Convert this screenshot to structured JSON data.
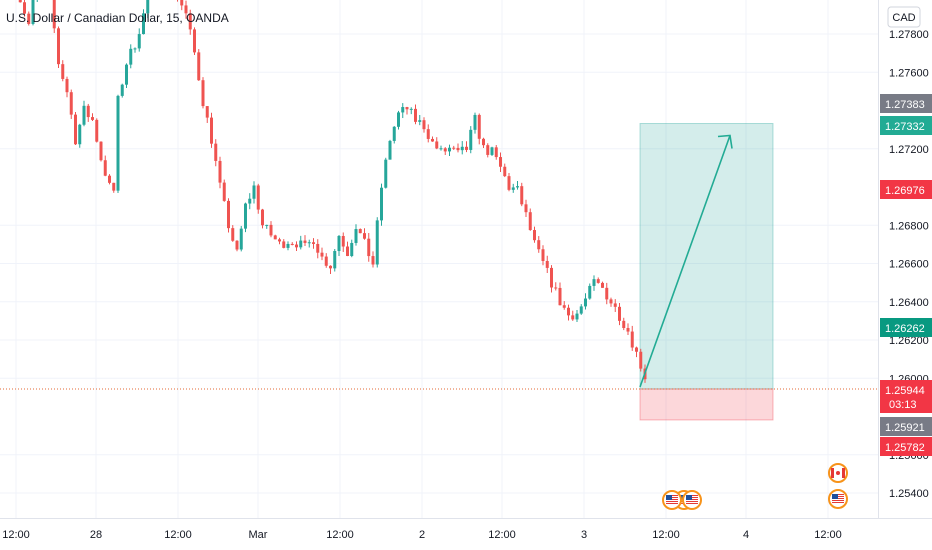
{
  "title": "U.S. Dollar / Canadian Dollar, 15, OANDA",
  "currency_label": "CAD",
  "colors": {
    "up": "#26a69a",
    "down": "#ef5350",
    "grid": "#f0f3fa",
    "axis_text": "#131722",
    "profit_zone": "rgba(38,166,154,0.2)",
    "loss_zone": "rgba(242,54,69,0.2)",
    "arrow": "#22ab94",
    "dotted_line": "#e36a35"
  },
  "chart_data": {
    "type": "candlestick",
    "instrument": "U.S. Dollar / Canadian Dollar",
    "interval": "15",
    "source": "OANDA",
    "ylim": [
      1.2533,
      1.2825
    ],
    "y_ticks": [
      "1.27800",
      "1.27600",
      "1.27200",
      "1.26800",
      "1.26600",
      "1.26400",
      "1.26200",
      "1.26000",
      "1.25600",
      "1.25400"
    ],
    "x_ticks": [
      "12:00",
      "28",
      "12:00",
      "Mar",
      "12:00",
      "2",
      "12:00",
      "3",
      "12:00",
      "4",
      "12:00"
    ],
    "price_path": [
      [
        0,
        1.2805
      ],
      [
        3,
        1.2785
      ],
      [
        5,
        1.281
      ],
      [
        8,
        1.28
      ],
      [
        10,
        1.2765
      ],
      [
        12,
        1.275
      ],
      [
        14,
        1.2725
      ],
      [
        16,
        1.274
      ],
      [
        18,
        1.2735
      ],
      [
        20,
        1.2715
      ],
      [
        22,
        1.27
      ],
      [
        23,
        1.2698
      ],
      [
        24,
        1.2745
      ],
      [
        26,
        1.2765
      ],
      [
        28,
        1.2775
      ],
      [
        30,
        1.279
      ],
      [
        32,
        1.281
      ],
      [
        34,
        1.2825
      ],
      [
        36,
        1.2815
      ],
      [
        38,
        1.28
      ],
      [
        40,
        1.279
      ],
      [
        42,
        1.277
      ],
      [
        44,
        1.2745
      ],
      [
        46,
        1.2725
      ],
      [
        48,
        1.27
      ],
      [
        50,
        1.268
      ],
      [
        52,
        1.2665
      ],
      [
        54,
        1.269
      ],
      [
        56,
        1.27
      ],
      [
        58,
        1.268
      ],
      [
        60,
        1.2675
      ],
      [
        62,
        1.267
      ],
      [
        64,
        1.2672
      ],
      [
        66,
        1.2671
      ],
      [
        68,
        1.2668
      ],
      [
        70,
        1.2673
      ],
      [
        72,
        1.2663
      ],
      [
        74,
        1.2659
      ],
      [
        76,
        1.2675
      ],
      [
        78,
        1.2666
      ],
      [
        80,
        1.268
      ],
      [
        82,
        1.267
      ],
      [
        84,
        1.266
      ],
      [
        86,
        1.27
      ],
      [
        88,
        1.2725
      ],
      [
        90,
        1.2738
      ],
      [
        92,
        1.2741
      ],
      [
        94,
        1.2735
      ],
      [
        96,
        1.2732
      ],
      [
        98,
        1.2723
      ],
      [
        100,
        1.2718
      ],
      [
        102,
        1.272
      ],
      [
        104,
        1.2717
      ],
      [
        106,
        1.272
      ],
      [
        108,
        1.2735
      ],
      [
        110,
        1.272
      ],
      [
        112,
        1.2718
      ],
      [
        114,
        1.271
      ],
      [
        116,
        1.27
      ],
      [
        118,
        1.2698
      ],
      [
        120,
        1.2685
      ],
      [
        122,
        1.267
      ],
      [
        124,
        1.266
      ],
      [
        126,
        1.265
      ],
      [
        128,
        1.264
      ],
      [
        130,
        1.2633
      ],
      [
        132,
        1.2634
      ],
      [
        134,
        1.2641
      ],
      [
        136,
        1.265
      ],
      [
        138,
        1.2647
      ],
      [
        140,
        1.264
      ],
      [
        142,
        1.2633
      ],
      [
        144,
        1.2625
      ],
      [
        146,
        1.2613
      ],
      [
        148,
        1.2601
      ]
    ],
    "current_price": "1.25944",
    "countdown": "03:13",
    "position_tool": {
      "entry": 1.25944,
      "target": 1.27332,
      "stop": 1.25782
    },
    "price_tags": [
      {
        "value": "1.27383",
        "kind": "gray"
      },
      {
        "value": "1.27332",
        "kind": "teal"
      },
      {
        "value": "1.26976",
        "kind": "red"
      },
      {
        "value": "1.26262",
        "kind": "green"
      },
      {
        "value": "1.25944",
        "kind": "red-current"
      },
      {
        "value": "1.25921",
        "kind": "gray"
      },
      {
        "value": "1.25782",
        "kind": "red"
      }
    ],
    "event_flags": [
      {
        "country": "US",
        "count": 3,
        "slot": "mar3-midday"
      },
      {
        "country": "CA",
        "count": 1,
        "slot": "mar4-night"
      },
      {
        "country": "US",
        "count": 1,
        "slot": "mar4-night"
      }
    ]
  }
}
